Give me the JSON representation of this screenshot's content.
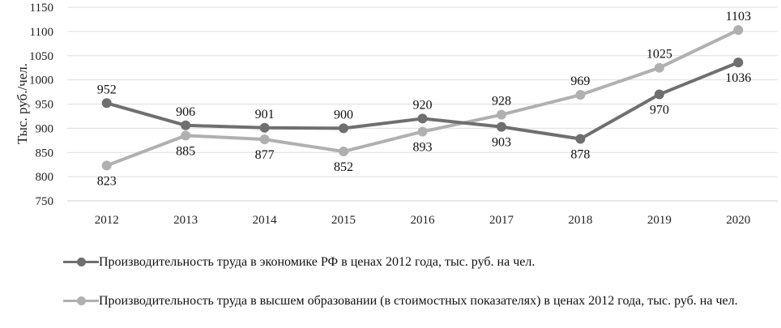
{
  "chart_data": {
    "type": "line",
    "ylabel": "Тыс. руб./чел.",
    "ylim": [
      750,
      1150
    ],
    "yticks": [
      750,
      800,
      850,
      900,
      950,
      1000,
      1050,
      1100,
      1150
    ],
    "categories": [
      "2012",
      "2013",
      "2014",
      "2015",
      "2016",
      "2017",
      "2018",
      "2019",
      "2020"
    ],
    "grid": "horizontal",
    "legend_position": "bottom",
    "series": [
      {
        "name": "Производительность труда в экономике РФ в ценах 2012  года, тыс. руб. на чел.",
        "values": [
          952,
          906,
          901,
          900,
          920,
          903,
          878,
          970,
          1036
        ],
        "color": "#6f6f6f"
      },
      {
        "name": "Производительность труда в высшем образовании (в стоимостных показателях) в ценах 2012  года, тыс. руб. на чел.",
        "values": [
          823,
          885,
          877,
          852,
          893,
          928,
          969,
          1025,
          1103
        ],
        "color": "#b0b0b0"
      }
    ]
  }
}
